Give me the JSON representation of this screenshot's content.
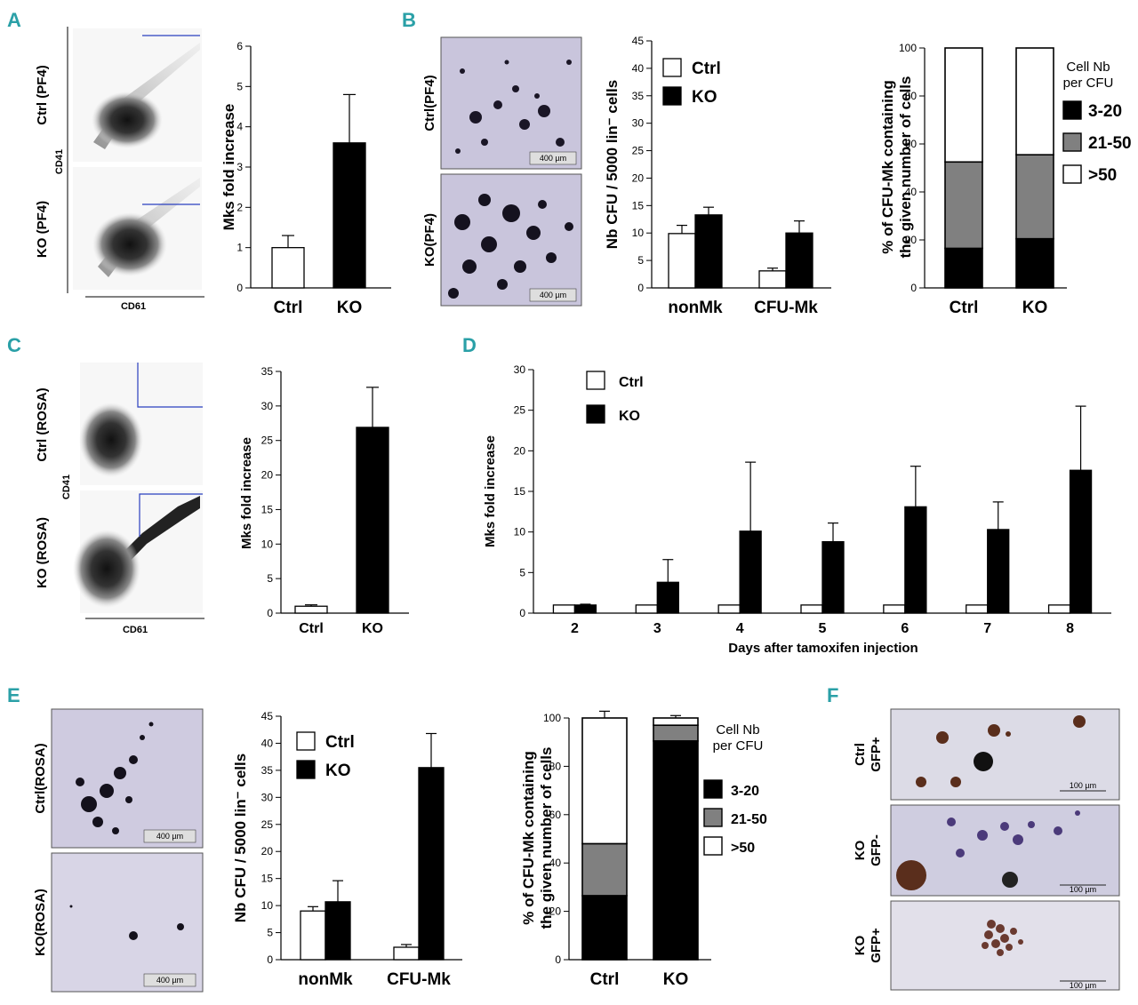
{
  "colors": {
    "accent": "#2aa0a7",
    "black": "#000000",
    "gray": "#808080",
    "white": "#ffffff",
    "gate": "#2a3fbf",
    "micro_bg": "#c9c5dc"
  },
  "panels": {
    "A": "A",
    "B": "B",
    "C": "C",
    "D": "D",
    "E": "E",
    "F": "F"
  },
  "flow": {
    "A": {
      "top": "Ctrl (PF4)",
      "bottom": "KO (PF4)",
      "y": "CD41",
      "x": "CD61"
    },
    "C": {
      "top": "Ctrl (ROSA)",
      "bottom": "KO (ROSA)",
      "y": "CD41",
      "x": "CD61"
    }
  },
  "micro": {
    "B": {
      "top": "Ctrl(PF4)",
      "bottom": "KO(PF4)",
      "scale": "400 µm"
    },
    "E": {
      "top": "Ctrl(ROSA)",
      "bottom": "KO(ROSA)",
      "scale": "400 µm"
    },
    "F": {
      "labels": [
        "Ctrl GFP+",
        "KO GFP-",
        "KO GFP+"
      ],
      "scale": "100 µm"
    }
  },
  "chart_data": [
    {
      "id": "A_bar",
      "type": "bar",
      "title": "",
      "xlabel": "",
      "ylabel": "Mks fold increase",
      "ylim": [
        0,
        6
      ],
      "yticks": [
        0,
        1,
        2,
        3,
        4,
        5,
        6
      ],
      "categories": [
        "Ctrl",
        "KO"
      ],
      "values": [
        1.0,
        3.6
      ],
      "errors": [
        0.3,
        1.2
      ],
      "fills": [
        "#ffffff",
        "#000000"
      ]
    },
    {
      "id": "B_bar",
      "type": "bar",
      "title": "",
      "xlabel": "",
      "ylabel": "Nb CFU / 5000 lin⁻ cells",
      "ylim": [
        0,
        45
      ],
      "yticks": [
        0,
        5,
        10,
        15,
        20,
        25,
        30,
        35,
        40,
        45
      ],
      "categories": [
        "nonMk",
        "CFU-Mk"
      ],
      "series": [
        {
          "name": "Ctrl",
          "values": [
            9.9,
            3.1
          ],
          "errors": [
            1.5,
            0.5
          ],
          "fill": "#ffffff"
        },
        {
          "name": "KO",
          "values": [
            13.3,
            10.0
          ],
          "errors": [
            1.4,
            2.2
          ],
          "fill": "#000000"
        }
      ],
      "legend": [
        "Ctrl",
        "KO"
      ]
    },
    {
      "id": "B_stack",
      "type": "bar",
      "stacked": true,
      "title": "",
      "xlabel": "",
      "ylabel_lines": [
        "% of CFU-Mk containing",
        "the given number of cells"
      ],
      "ylim": [
        0,
        100
      ],
      "yticks": [
        0,
        20,
        40,
        60,
        80,
        100
      ],
      "categories": [
        "Ctrl",
        "KO"
      ],
      "legend_title_lines": [
        "Cell Nb",
        "per CFU"
      ],
      "series": [
        {
          "name": "3-20",
          "values": [
            16.5,
            20.5
          ],
          "fill": "#000000"
        },
        {
          "name": "21-50",
          "values": [
            36,
            35
          ],
          "fill": "#808080"
        },
        {
          "name": ">50",
          "values": [
            47.5,
            44.5
          ],
          "fill": "#ffffff"
        }
      ]
    },
    {
      "id": "C_bar",
      "type": "bar",
      "title": "",
      "xlabel": "",
      "ylabel": "Mks fold increase",
      "ylim": [
        0,
        35
      ],
      "yticks": [
        0,
        5,
        10,
        15,
        20,
        25,
        30,
        35
      ],
      "categories": [
        "Ctrl",
        "KO"
      ],
      "values": [
        1.0,
        26.9
      ],
      "errors": [
        0.2,
        5.8
      ],
      "fills": [
        "#ffffff",
        "#000000"
      ]
    },
    {
      "id": "D_bar",
      "type": "bar",
      "title": "",
      "xlabel": "Days after tamoxifen injection",
      "ylabel": "Mks fold increase",
      "ylim": [
        0,
        30
      ],
      "yticks": [
        0,
        5,
        10,
        15,
        20,
        25,
        30
      ],
      "categories": [
        "2",
        "3",
        "4",
        "5",
        "6",
        "7",
        "8"
      ],
      "series": [
        {
          "name": "Ctrl",
          "values": [
            1,
            1,
            1,
            1,
            1,
            1,
            1
          ],
          "errors": [
            0,
            0,
            0,
            0,
            0,
            0,
            0
          ],
          "fill": "#ffffff"
        },
        {
          "name": "KO",
          "values": [
            1.0,
            3.8,
            10.1,
            8.8,
            13.1,
            10.3,
            17.6
          ],
          "errors": [
            0.1,
            2.8,
            8.5,
            2.3,
            5.0,
            3.4,
            7.9
          ],
          "fill": "#000000"
        }
      ],
      "legend": [
        "Ctrl",
        "KO"
      ]
    },
    {
      "id": "E_bar",
      "type": "bar",
      "title": "",
      "xlabel": "",
      "ylabel": "Nb CFU / 5000 lin⁻ cells",
      "ylim": [
        0,
        45
      ],
      "yticks": [
        0,
        5,
        10,
        15,
        20,
        25,
        30,
        35,
        40,
        45
      ],
      "categories": [
        "nonMk",
        "CFU-Mk"
      ],
      "series": [
        {
          "name": "Ctrl",
          "values": [
            9.0,
            2.3
          ],
          "errors": [
            0.8,
            0.5
          ],
          "fill": "#ffffff"
        },
        {
          "name": "KO",
          "values": [
            10.7,
            35.5
          ],
          "errors": [
            3.9,
            6.3
          ],
          "fill": "#000000"
        }
      ],
      "legend": [
        "Ctrl",
        "KO"
      ]
    },
    {
      "id": "E_stack",
      "type": "bar",
      "stacked": true,
      "title": "",
      "xlabel": "",
      "ylabel_lines": [
        "% of CFU-Mk containing",
        "the given number of cells"
      ],
      "ylim": [
        0,
        100
      ],
      "yticks": [
        0,
        20,
        40,
        60,
        80,
        100
      ],
      "categories": [
        "Ctrl",
        "KO"
      ],
      "legend_title_lines": [
        "Cell Nb",
        "per CFU"
      ],
      "series": [
        {
          "name": "3-20",
          "values": [
            26.5,
            90.5
          ],
          "errors": [
            1.2,
            1.5
          ],
          "fill": "#000000"
        },
        {
          "name": "21-50",
          "values": [
            21.5,
            6.5
          ],
          "errors": [
            4.5,
            1.5
          ],
          "fill": "#808080"
        },
        {
          "name": ">50",
          "values": [
            52,
            3
          ],
          "errors": [
            2.8,
            1.0
          ],
          "fill": "#ffffff"
        }
      ]
    }
  ]
}
